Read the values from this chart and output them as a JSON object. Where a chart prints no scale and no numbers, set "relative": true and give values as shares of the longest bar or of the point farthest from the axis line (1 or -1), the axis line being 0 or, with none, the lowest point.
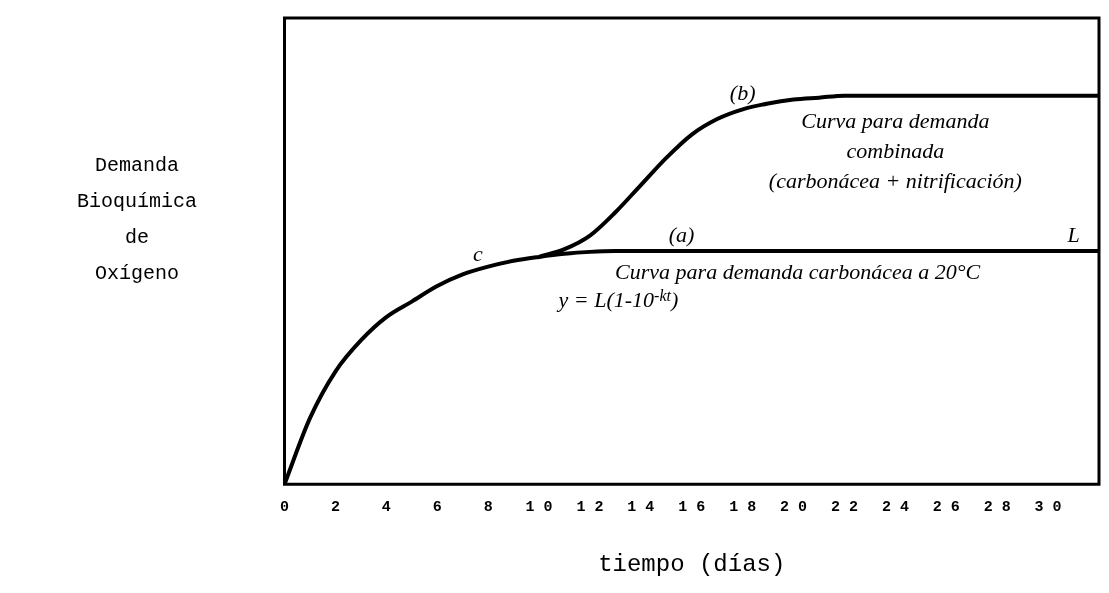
{
  "chart_data": {
    "type": "line",
    "relative": true,
    "ylabel": "Demanda\nBioquímica\nde\nOxígeno",
    "xlabel": "tiempo (días)",
    "xlim": [
      0,
      32
    ],
    "xticks": [
      0,
      2,
      4,
      6,
      8,
      10,
      12,
      14,
      16,
      18,
      20,
      22,
      24,
      26,
      28,
      30
    ],
    "grid": false,
    "legend": false,
    "marker": "none",
    "line_style": "solid",
    "series": [
      {
        "color": "#000000",
        "x": [
          0,
          1,
          2,
          3,
          4,
          5,
          6,
          7,
          8,
          9,
          10,
          11,
          12,
          13,
          14,
          16,
          20,
          24,
          28,
          32
        ],
        "values": [
          0,
          0.17,
          0.29,
          0.37,
          0.43,
          0.47,
          0.51,
          0.54,
          0.56,
          0.575,
          0.585,
          0.593,
          0.598,
          0.6,
          0.6,
          0.6,
          0.6,
          0.6,
          0.6,
          0.6
        ]
      },
      {
        "color": "#000000",
        "x": [
          10,
          11,
          12,
          13,
          14,
          15,
          16,
          17,
          18,
          19,
          20,
          21,
          22,
          24,
          28,
          32
        ],
        "values": [
          0.585,
          0.605,
          0.64,
          0.7,
          0.77,
          0.84,
          0.9,
          0.94,
          0.965,
          0.98,
          0.99,
          0.995,
          1.0,
          1.0,
          1.0,
          1.0
        ]
      }
    ],
    "annotations": [
      {
        "text": "(a)",
        "x": 15.6,
        "y": 0.6
      },
      {
        "text": "(b)",
        "x": 18,
        "y": 0.965
      },
      {
        "text": "c",
        "x": 7.6,
        "y": 0.55
      },
      {
        "text": "L",
        "x": 31,
        "y": 0.6
      },
      "Curva para demanda\ncombinada\n(carbonácea + nitrificación)",
      "Curva para demanda carbonácea a 20°C",
      "y = L(1-10$^{-kt}$)"
    ]
  }
}
